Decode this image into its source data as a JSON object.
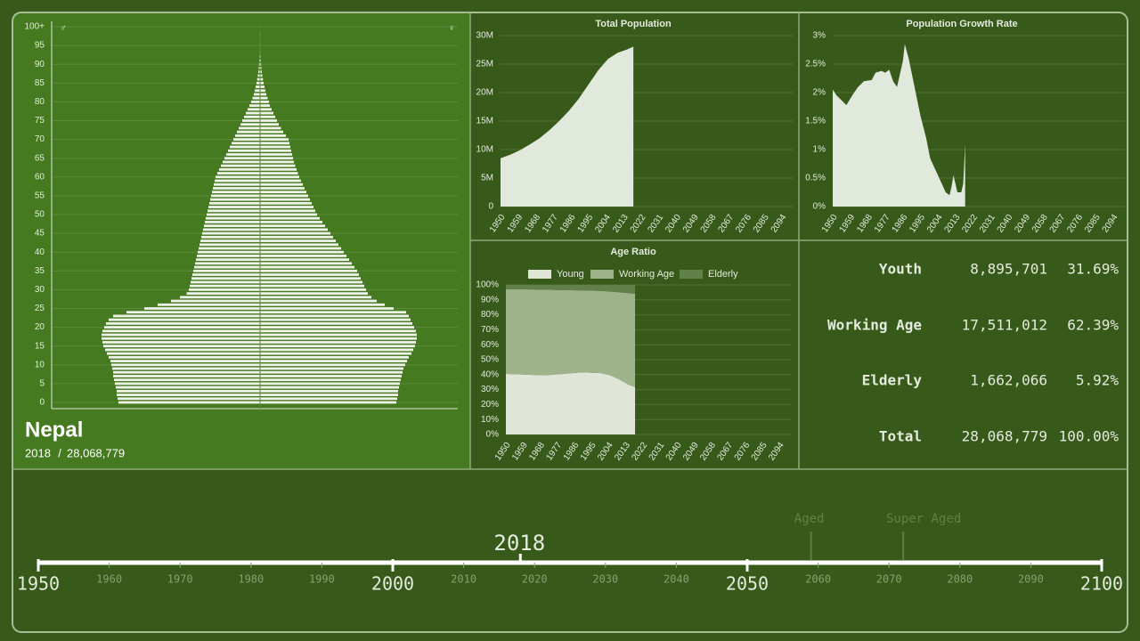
{
  "chart_data": [
    {
      "type": "pyramid",
      "ylim": [
        0,
        100
      ],
      "yticks": [
        0,
        5,
        10,
        15,
        20,
        25,
        30,
        35,
        40,
        45,
        50,
        55,
        60,
        65,
        70,
        75,
        80,
        85,
        90,
        95,
        {
          "value": 100,
          "label": "100+"
        }
      ],
      "series": [
        {
          "name": "♂",
          "color": "#eef2e8",
          "values": [
            318000,
            320000,
            322000,
            322000,
            324000,
            326000,
            328000,
            330000,
            330000,
            332000,
            334000,
            336000,
            340000,
            344000,
            348000,
            352000,
            354000,
            356000,
            356000,
            354000,
            350000,
            346000,
            340000,
            330000,
            300000,
            260000,
            230000,
            200000,
            180000,
            165000,
            160000,
            158000,
            156000,
            154000,
            152000,
            150000,
            148000,
            146000,
            144000,
            142000,
            140000,
            138000,
            136000,
            134000,
            132000,
            130000,
            128000,
            126000,
            124000,
            122000,
            120000,
            118000,
            116000,
            114000,
            112000,
            110000,
            108000,
            106000,
            104000,
            102000,
            100000,
            96000,
            92000,
            88000,
            84000,
            80000,
            76000,
            72000,
            68000,
            64000,
            60000,
            56000,
            52000,
            48000,
            44000,
            40000,
            36000,
            32000,
            28000,
            24000,
            20000,
            17000,
            14000,
            12000,
            10000,
            8000,
            6500,
            5000,
            4000,
            3000,
            2400,
            1900,
            1500,
            1100,
            800,
            600,
            400,
            300,
            200,
            100,
            100
          ]
        },
        {
          "name": "♀",
          "color": "#eef2e8",
          "values": [
            306000,
            308000,
            310000,
            310000,
            312000,
            314000,
            316000,
            318000,
            320000,
            322000,
            326000,
            330000,
            334000,
            340000,
            344000,
            348000,
            350000,
            352000,
            352000,
            350000,
            346000,
            342000,
            338000,
            334000,
            328000,
            300000,
            280000,
            262000,
            250000,
            242000,
            238000,
            234000,
            230000,
            226000,
            222000,
            218000,
            212000,
            206000,
            200000,
            194000,
            188000,
            182000,
            176000,
            170000,
            164000,
            158000,
            152000,
            146000,
            140000,
            134000,
            128000,
            124000,
            120000,
            116000,
            112000,
            108000,
            104000,
            100000,
            96000,
            92000,
            88000,
            85000,
            82000,
            79000,
            76000,
            74000,
            72000,
            70000,
            68000,
            66000,
            64000,
            58000,
            52000,
            47000,
            42000,
            38000,
            34000,
            30000,
            26000,
            22000,
            20000,
            17000,
            14000,
            12000,
            10000,
            8000,
            6500,
            5000,
            4000,
            3000,
            2400,
            1900,
            1500,
            1100,
            800,
            600,
            400,
            300,
            200,
            100,
            100
          ]
        }
      ]
    },
    {
      "type": "area",
      "title": "Total Population",
      "color": "#e1e8dc",
      "grid": true,
      "x": [
        1950,
        1955,
        1960,
        1965,
        1970,
        1975,
        1980,
        1985,
        1990,
        1995,
        2000,
        2005,
        2010,
        2015,
        2018
      ],
      "values": [
        8480000,
        9100000,
        9900000,
        10900000,
        12000000,
        13400000,
        15000000,
        16800000,
        18900000,
        21400000,
        23900000,
        25900000,
        27000000,
        27600000,
        28068779
      ],
      "xlim": [
        1950,
        2100
      ],
      "xticks": [
        1950,
        1959,
        1968,
        1977,
        1986,
        1995,
        2004,
        2013,
        2022,
        2031,
        2040,
        2049,
        2058,
        2067,
        2076,
        2085,
        2094
      ],
      "ylim": [
        0,
        30000000
      ],
      "yticks": [
        0,
        {
          "value": 5000000,
          "label": "5M"
        },
        {
          "value": 10000000,
          "label": "10M"
        },
        {
          "value": 15000000,
          "label": "15M"
        },
        {
          "value": 20000000,
          "label": "20M"
        },
        {
          "value": 25000000,
          "label": "25M"
        },
        {
          "value": 30000000,
          "label": "30M"
        }
      ]
    },
    {
      "type": "area",
      "title": "Population Growth Rate",
      "color": "#e1e8dc",
      "grid": true,
      "x": [
        1950,
        1952,
        1955,
        1957,
        1960,
        1963,
        1966,
        1970,
        1972,
        1975,
        1977,
        1979,
        1981,
        1983,
        1986,
        1987,
        1989,
        1992,
        1995,
        1998,
        2000,
        2002,
        2004,
        2006,
        2008,
        2010,
        2011,
        2012,
        2013,
        2014,
        2016,
        2017,
        2018
      ],
      "values": [
        2.05,
        1.95,
        1.85,
        1.78,
        1.95,
        2.1,
        2.2,
        2.22,
        2.35,
        2.38,
        2.35,
        2.4,
        2.2,
        2.1,
        2.55,
        2.85,
        2.6,
        2.1,
        1.6,
        1.2,
        0.85,
        0.7,
        0.55,
        0.4,
        0.25,
        0.2,
        0.35,
        0.55,
        0.4,
        0.25,
        0.25,
        0.4,
        1.1
      ],
      "xlim": [
        1950,
        2100
      ],
      "xticks": [
        1950,
        1959,
        1968,
        1977,
        1986,
        1995,
        2004,
        2013,
        2022,
        2031,
        2040,
        2049,
        2058,
        2067,
        2076,
        2085,
        2094
      ],
      "ylim": [
        0,
        3
      ],
      "yticks": [
        {
          "value": 0,
          "label": "0%"
        },
        {
          "value": 0.5,
          "label": "0.5%"
        },
        {
          "value": 1,
          "label": "1%"
        },
        {
          "value": 1.5,
          "label": "1.5%"
        },
        {
          "value": 2,
          "label": "2%"
        },
        {
          "value": 2.5,
          "label": "2.5%"
        },
        {
          "value": 3,
          "label": "3%"
        }
      ]
    },
    {
      "type": "stacked_area",
      "title": "Age Ratio",
      "grid": true,
      "x": [
        1950,
        1960,
        1970,
        1980,
        1990,
        2000,
        2005,
        2010,
        2015,
        2018
      ],
      "series": [
        {
          "name": "Young",
          "color": "#dfe6d7",
          "values": [
            40.5,
            40,
            39.5,
            40.5,
            41.5,
            41,
            39.5,
            36.5,
            33,
            31.69
          ]
        },
        {
          "name": "Working Age",
          "color": "#9fb38a",
          "values": [
            56.5,
            57,
            57.3,
            56,
            54.8,
            55,
            56,
            58.5,
            61.4,
            62.39
          ]
        },
        {
          "name": "Elderly",
          "color": "#62814a",
          "values": [
            3,
            3,
            3.2,
            3.5,
            3.7,
            4,
            4.5,
            5,
            5.6,
            5.92
          ]
        }
      ],
      "xlim": [
        1950,
        2100
      ],
      "xticks": [
        1950,
        1959,
        1968,
        1977,
        1986,
        1995,
        2004,
        2013,
        2022,
        2031,
        2040,
        2049,
        2058,
        2067,
        2076,
        2085,
        2094
      ],
      "ylim": [
        0,
        100
      ],
      "yticks": [
        {
          "value": 0,
          "label": "0%"
        },
        {
          "value": 10,
          "label": "10%"
        },
        {
          "value": 20,
          "label": "20%"
        },
        {
          "value": 30,
          "label": "30%"
        },
        {
          "value": 40,
          "label": "40%"
        },
        {
          "value": 50,
          "label": "50%"
        },
        {
          "value": 60,
          "label": "60%"
        },
        {
          "value": 70,
          "label": "70%"
        },
        {
          "value": 80,
          "label": "80%"
        },
        {
          "value": 90,
          "label": "90%"
        },
        {
          "value": 100,
          "label": "100%"
        }
      ]
    },
    {
      "type": "timeline",
      "xlim": [
        1950,
        2100
      ],
      "major_ticks": [
        1950,
        2000,
        2050,
        2100
      ],
      "minor_ticks": [
        1960,
        1970,
        1980,
        1990,
        2010,
        2020,
        2030,
        2040,
        2060,
        2070,
        2080,
        2090
      ],
      "current": 2018,
      "markers": [
        {
          "label": "Aged",
          "value": 2059
        },
        {
          "label": "Super Aged",
          "value": 2072
        }
      ]
    }
  ],
  "country": {
    "name": "Nepal",
    "year": "2018",
    "separator": "/",
    "population": "28,068,779"
  },
  "stats": {
    "rows": [
      [
        "Youth",
        "8,895,701",
        "31.69%"
      ],
      [
        "Working Age",
        "17,511,012",
        "62.39%"
      ],
      [
        "Elderly",
        "1,662,066",
        "5.92%"
      ],
      [
        "Total",
        "28,068,779",
        "100.00%"
      ]
    ]
  }
}
